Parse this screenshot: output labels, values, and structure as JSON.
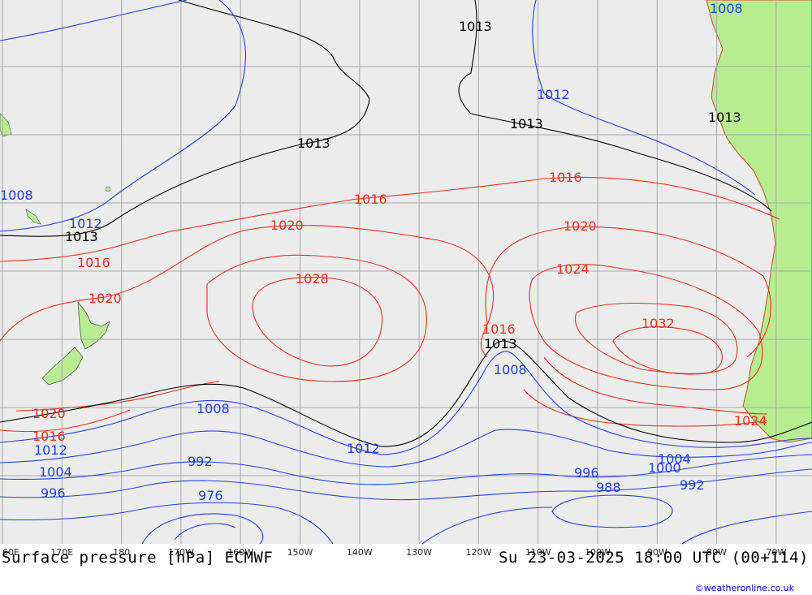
{
  "title_left": "Surface pressure [hPa] ECMWF",
  "title_right": "Su 23-03-2025 18:00 UTC (00+114)",
  "credit": "©weatheronline.co.uk",
  "lon_labels": [
    "60E",
    "170E",
    "180",
    "170W",
    "160W",
    "150W",
    "140W",
    "130W",
    "120W",
    "110W",
    "100W",
    "90W",
    "80W",
    "70W"
  ],
  "colors": {
    "ocean": "#ececec",
    "land": "#b8ec90",
    "grid": "#a8a8a8",
    "high": "#e8301e",
    "low": "#2040e0",
    "mid": "#000000"
  },
  "isobar_labels": {
    "l1013a": "1013",
    "l1013b": "1013",
    "l1013c": "1013",
    "l1013d": "1013",
    "l1013e": "1013",
    "l1013f": "1013",
    "l1016a": "1016",
    "l1016b": "1016",
    "l1016c": "1016",
    "l1016d": "1016",
    "l1016e": "1016",
    "l1020a": "1020",
    "l1020b": "1020",
    "l1020c": "1020",
    "l1020d": "1020",
    "l1024a": "1024",
    "l1024b": "1024",
    "l1028": "1028",
    "l1032": "1032",
    "l1012a": "1012",
    "l1012b": "1012",
    "l1012c": "1012",
    "l1012d": "1012",
    "l1008a": "1008",
    "l1008b": "1008",
    "l1008c": "1008",
    "l1008d": "1008",
    "l1004a": "1004",
    "l1004b": "1004",
    "l1000": "1000",
    "l996a": "996",
    "l996b": "996",
    "l992a": "992",
    "l992b": "992",
    "l988": "988",
    "l976": "976"
  }
}
